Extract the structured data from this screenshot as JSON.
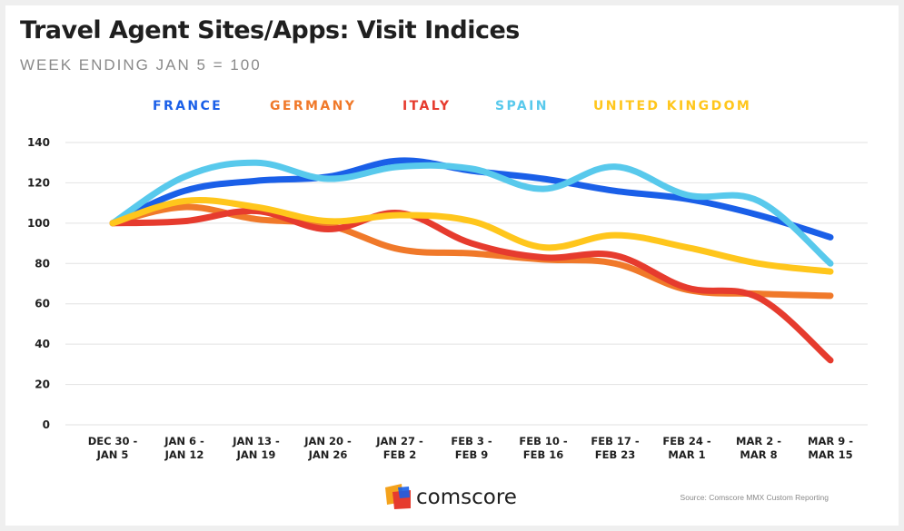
{
  "chart_data": {
    "type": "line",
    "title": "Travel Agent Sites/Apps: Visit Indices",
    "subtitle": "WEEK ENDING JAN 5 = 100",
    "categories": [
      [
        "DEC 30 -",
        "JAN 5"
      ],
      [
        "JAN 6 -",
        "JAN 12"
      ],
      [
        "JAN 13 -",
        "JAN 19"
      ],
      [
        "JAN 20 -",
        "JAN 26"
      ],
      [
        "JAN 27 -",
        "FEB 2"
      ],
      [
        "FEB 3 -",
        "FEB 9"
      ],
      [
        "FEB 10 -",
        "FEB 16"
      ],
      [
        "FEB 17 -",
        "FEB 23"
      ],
      [
        "FEB 24 -",
        "MAR 1"
      ],
      [
        "MAR 2 -",
        "MAR 8"
      ],
      [
        "MAR 9 -",
        "MAR 15"
      ]
    ],
    "ylim": [
      0,
      140
    ],
    "yticks": [
      0,
      20,
      40,
      60,
      80,
      100,
      120,
      140
    ],
    "grid": true,
    "legend_position": "top",
    "series": [
      {
        "name": "FRANCE",
        "color": "#1a5fe8",
        "values": [
          100,
          116,
          121,
          123,
          131,
          126,
          122,
          116,
          112,
          104,
          93
        ]
      },
      {
        "name": "GERMANY",
        "color": "#f0792a",
        "values": [
          100,
          108,
          102,
          99,
          87,
          85,
          82,
          80,
          67,
          65,
          64
        ]
      },
      {
        "name": "ITALY",
        "color": "#e63b2e",
        "values": [
          100,
          101,
          106,
          97,
          105,
          90,
          83,
          84,
          68,
          63,
          32
        ]
      },
      {
        "name": "SPAIN",
        "color": "#58c9ec",
        "values": [
          100,
          123,
          130,
          122,
          128,
          127,
          117,
          128,
          114,
          111,
          80
        ]
      },
      {
        "name": "UNITED KINGDOM",
        "color": "#ffc61c",
        "values": [
          100,
          111,
          108,
          101,
          104,
          101,
          88,
          94,
          88,
          80,
          76
        ]
      }
    ]
  },
  "branding": {
    "logo_text": "comscore",
    "logo_icon": "comscore-logo-icon",
    "source": "Source: Comscore MMX Custom Reporting"
  }
}
